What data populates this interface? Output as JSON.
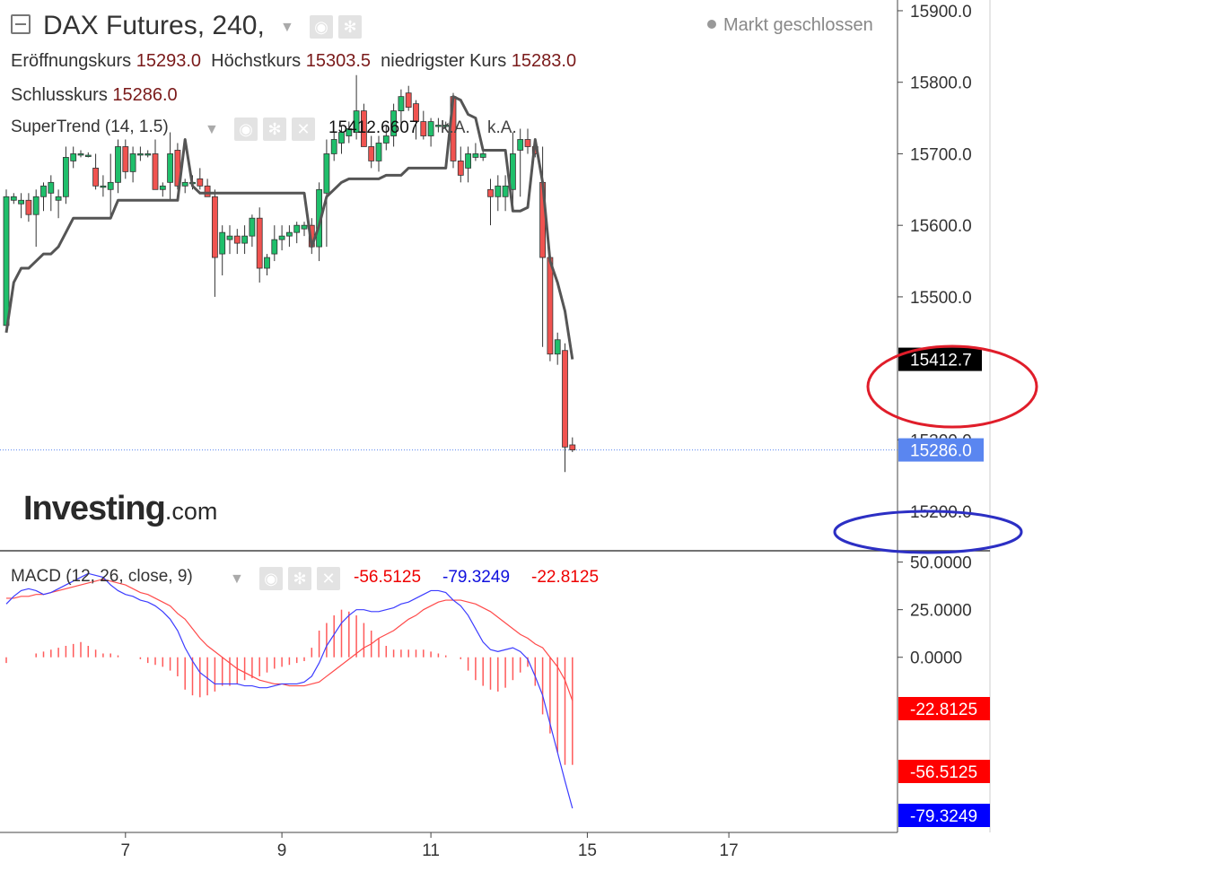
{
  "header": {
    "collapse_icon": "minus-square-icon",
    "title": "DAX Futures, 240,",
    "open_label": "Eröffnungskurs",
    "open_value": "15293.0",
    "high_label": "Höchstkurs",
    "high_value": "15303.5",
    "low_label": "niedrigster Kurs",
    "low_value": "15283.0",
    "close_label": "Schlusskurs",
    "close_value": "15286.0",
    "market_status": "Markt geschlossen"
  },
  "supertrend": {
    "label": "SuperTrend (14, 1.5)",
    "value": "15412.6607",
    "na1": "k.A.",
    "na2": "k.A."
  },
  "macd_legend": {
    "label": "MACD (12, 26, close, 9)",
    "hist_value": "-56.5125",
    "macd_value": "-79.3249",
    "signal_value": "-22.8125"
  },
  "logo": {
    "main": "Investing",
    "suffix": ".com"
  },
  "colors": {
    "up": "#1fbf6b",
    "down": "#f05350",
    "supertrend": "#555555",
    "macd_line": "#3c3cff",
    "signal_line": "#ff4a4a",
    "histogram": "#ff5a5a",
    "price_tag": "#5a86f0",
    "highlight_red": "#e01d2a",
    "highlight_blue": "#2c2fc4"
  },
  "chart_data": [
    {
      "type": "candlestick",
      "title": "DAX Futures, 240,",
      "ylim": [
        15145,
        15915
      ],
      "yticks": [
        15900,
        15800,
        15700,
        15600,
        15500,
        15300,
        15200
      ],
      "ytick_labels": [
        "15900.0",
        "15800.0",
        "15700.0",
        "15600.0",
        "15500.0",
        "15300.0",
        "15200.0"
      ],
      "x_ticks": [
        {
          "label": "7",
          "bar": 16
        },
        {
          "label": "9",
          "bar": 37
        },
        {
          "label": "11",
          "bar": 57
        },
        {
          "label": "15",
          "bar": 78
        },
        {
          "label": "17",
          "bar": 97
        }
      ],
      "candles": [
        {
          "o": 15460,
          "h": 15650,
          "l": 15455,
          "c": 15640
        },
        {
          "o": 15635,
          "h": 15645,
          "l": 15630,
          "c": 15640
        },
        {
          "o": 15630,
          "h": 15645,
          "l": 15610,
          "c": 15635
        },
        {
          "o": 15635,
          "h": 15645,
          "l": 15605,
          "c": 15615
        },
        {
          "o": 15615,
          "h": 15650,
          "l": 15570,
          "c": 15640
        },
        {
          "o": 15640,
          "h": 15660,
          "l": 15620,
          "c": 15655
        },
        {
          "o": 15645,
          "h": 15670,
          "l": 15620,
          "c": 15660
        },
        {
          "o": 15635,
          "h": 15650,
          "l": 15610,
          "c": 15640
        },
        {
          "o": 15640,
          "h": 15710,
          "l": 15630,
          "c": 15695
        },
        {
          "o": 15690,
          "h": 15710,
          "l": 15680,
          "c": 15700
        },
        {
          "o": 15700,
          "h": 15705,
          "l": 15695,
          "c": 15700
        },
        {
          "o": 15698,
          "h": 15702,
          "l": 15695,
          "c": 15698
        },
        {
          "o": 15680,
          "h": 15700,
          "l": 15650,
          "c": 15655
        },
        {
          "o": 15655,
          "h": 15670,
          "l": 15640,
          "c": 15655
        },
        {
          "o": 15650,
          "h": 15700,
          "l": 15610,
          "c": 15660
        },
        {
          "o": 15660,
          "h": 15720,
          "l": 15645,
          "c": 15710
        },
        {
          "o": 15710,
          "h": 15720,
          "l": 15665,
          "c": 15675
        },
        {
          "o": 15675,
          "h": 15710,
          "l": 15660,
          "c": 15700
        },
        {
          "o": 15700,
          "h": 15710,
          "l": 15690,
          "c": 15700
        },
        {
          "o": 15700,
          "h": 15705,
          "l": 15695,
          "c": 15700
        },
        {
          "o": 15700,
          "h": 15720,
          "l": 15650,
          "c": 15650
        },
        {
          "o": 15650,
          "h": 15660,
          "l": 15640,
          "c": 15655
        },
        {
          "o": 15660,
          "h": 15730,
          "l": 15635,
          "c": 15700
        },
        {
          "o": 15705,
          "h": 15715,
          "l": 15650,
          "c": 15655
        },
        {
          "o": 15655,
          "h": 15665,
          "l": 15645,
          "c": 15660
        },
        {
          "o": 15660,
          "h": 15670,
          "l": 15650,
          "c": 15660
        },
        {
          "o": 15665,
          "h": 15680,
          "l": 15650,
          "c": 15655
        },
        {
          "o": 15655,
          "h": 15665,
          "l": 15640,
          "c": 15640
        },
        {
          "o": 15640,
          "h": 15650,
          "l": 15500,
          "c": 15555
        },
        {
          "o": 15560,
          "h": 15600,
          "l": 15530,
          "c": 15590
        },
        {
          "o": 15580,
          "h": 15600,
          "l": 15560,
          "c": 15585
        },
        {
          "o": 15585,
          "h": 15595,
          "l": 15560,
          "c": 15575
        },
        {
          "o": 15575,
          "h": 15600,
          "l": 15560,
          "c": 15585
        },
        {
          "o": 15585,
          "h": 15615,
          "l": 15570,
          "c": 15610
        },
        {
          "o": 15610,
          "h": 15625,
          "l": 15520,
          "c": 15540
        },
        {
          "o": 15540,
          "h": 15560,
          "l": 15530,
          "c": 15555
        },
        {
          "o": 15560,
          "h": 15600,
          "l": 15550,
          "c": 15580
        },
        {
          "o": 15580,
          "h": 15600,
          "l": 15565,
          "c": 15585
        },
        {
          "o": 15585,
          "h": 15600,
          "l": 15570,
          "c": 15590
        },
        {
          "o": 15590,
          "h": 15605,
          "l": 15575,
          "c": 15600
        },
        {
          "o": 15595,
          "h": 15605,
          "l": 15585,
          "c": 15600
        },
        {
          "o": 15600,
          "h": 15610,
          "l": 15560,
          "c": 15570
        },
        {
          "o": 15570,
          "h": 15660,
          "l": 15550,
          "c": 15650
        },
        {
          "o": 15645,
          "h": 15720,
          "l": 15570,
          "c": 15700
        },
        {
          "o": 15700,
          "h": 15730,
          "l": 15690,
          "c": 15720
        },
        {
          "o": 15715,
          "h": 15740,
          "l": 15700,
          "c": 15730
        },
        {
          "o": 15725,
          "h": 15745,
          "l": 15715,
          "c": 15735
        },
        {
          "o": 15730,
          "h": 15810,
          "l": 15720,
          "c": 15760
        },
        {
          "o": 15760,
          "h": 15770,
          "l": 15710,
          "c": 15710
        },
        {
          "o": 15710,
          "h": 15725,
          "l": 15680,
          "c": 15690
        },
        {
          "o": 15690,
          "h": 15725,
          "l": 15675,
          "c": 15715
        },
        {
          "o": 15715,
          "h": 15740,
          "l": 15705,
          "c": 15725
        },
        {
          "o": 15725,
          "h": 15770,
          "l": 15710,
          "c": 15760
        },
        {
          "o": 15760,
          "h": 15790,
          "l": 15740,
          "c": 15780
        },
        {
          "o": 15785,
          "h": 15795,
          "l": 15760,
          "c": 15765
        },
        {
          "o": 15770,
          "h": 15775,
          "l": 15720,
          "c": 15745
        },
        {
          "o": 15745,
          "h": 15760,
          "l": 15720,
          "c": 15725
        },
        {
          "o": 15725,
          "h": 15750,
          "l": 15710,
          "c": 15745
        },
        {
          "o": 15740,
          "h": 15750,
          "l": 15730,
          "c": 15740
        },
        {
          "o": 15740,
          "h": 15745,
          "l": 15735,
          "c": 15740
        },
        {
          "o": 15780,
          "h": 15785,
          "l": 15680,
          "c": 15690
        },
        {
          "o": 15690,
          "h": 15710,
          "l": 15660,
          "c": 15670
        },
        {
          "o": 15680,
          "h": 15710,
          "l": 15660,
          "c": 15700
        },
        {
          "o": 15695,
          "h": 15715,
          "l": 15690,
          "c": 15700
        },
        {
          "o": 15695,
          "h": 15705,
          "l": 15690,
          "c": 15700
        },
        {
          "o": 15650,
          "h": 15665,
          "l": 15600,
          "c": 15640
        },
        {
          "o": 15640,
          "h": 15670,
          "l": 15620,
          "c": 15655
        },
        {
          "o": 15640,
          "h": 15670,
          "l": 15620,
          "c": 15655
        },
        {
          "o": 15650,
          "h": 15730,
          "l": 15630,
          "c": 15700
        },
        {
          "o": 15705,
          "h": 15735,
          "l": 15640,
          "c": 15720
        },
        {
          "o": 15720,
          "h": 15735,
          "l": 15700,
          "c": 15710
        },
        {
          "o": 15710,
          "h": 15720,
          "l": 15695,
          "c": 15700
        },
        {
          "o": 15660,
          "h": 15710,
          "l": 15430,
          "c": 15555
        },
        {
          "o": 15555,
          "h": 15560,
          "l": 15410,
          "c": 15420
        },
        {
          "o": 15420,
          "h": 15450,
          "l": 15405,
          "c": 15440
        },
        {
          "o": 15425,
          "h": 15435,
          "l": 15255,
          "c": 15290
        },
        {
          "o": 15293,
          "h": 15303.5,
          "l": 15283,
          "c": 15286
        }
      ],
      "supertrend": [
        15450,
        15520,
        15540,
        15540,
        15550,
        15560,
        15560,
        15570,
        15590,
        15610,
        15610,
        15610,
        15610,
        15610,
        15610,
        15635,
        15635,
        15635,
        15635,
        15635,
        15635,
        15635,
        15635,
        15635,
        15720,
        15655,
        15645,
        15645,
        15645,
        15645,
        15645,
        15645,
        15645,
        15645,
        15645,
        15645,
        15645,
        15645,
        15645,
        15645,
        15645,
        15570,
        15600,
        15640,
        15650,
        15660,
        15665,
        15665,
        15665,
        15665,
        15665,
        15670,
        15670,
        15670,
        15680,
        15680,
        15680,
        15680,
        15680,
        15680,
        15780,
        15775,
        15755,
        15750,
        15705,
        15705,
        15705,
        15705,
        15620,
        15620,
        15625,
        15720,
        15660,
        15550,
        15520,
        15480,
        15412.6607
      ],
      "last_price": 15286.0,
      "last_price_label": "15286.0",
      "supertrend_last_label": "15412.7"
    },
    {
      "type": "line",
      "title": "MACD (12, 26, close, 9)",
      "ylim": [
        -92,
        55
      ],
      "yticks": [
        50,
        25,
        0
      ],
      "ytick_labels": [
        "50.0000",
        "25.0000",
        "0.0000"
      ],
      "series": [
        {
          "values": [
            28,
            32,
            35,
            36,
            35,
            33,
            34,
            36,
            38,
            40,
            42,
            44,
            43,
            42,
            38,
            35,
            33,
            32,
            30,
            29,
            27,
            24,
            20,
            14,
            5,
            -2,
            -8,
            -11,
            -14,
            -14,
            -14,
            -14,
            -15,
            -15,
            -16,
            -16,
            -15,
            -14,
            -14,
            -14,
            -13,
            -10,
            -3,
            6,
            12,
            18,
            22,
            25,
            25,
            24,
            24,
            25,
            26,
            28,
            29,
            31,
            33,
            35,
            35,
            34,
            30,
            27,
            22,
            15,
            8,
            4,
            3,
            4,
            5,
            3,
            -1,
            -10,
            -20,
            -35,
            -50,
            -65,
            -79.3249
          ]
        },
        {
          "values": [
            31,
            31,
            32,
            32,
            33,
            33,
            34,
            35,
            36,
            37,
            38,
            39,
            40,
            41,
            40,
            39,
            38,
            36,
            34,
            33,
            31,
            29,
            27,
            23,
            20,
            15,
            10,
            6,
            3,
            0,
            -3,
            -6,
            -8,
            -10,
            -12,
            -13,
            -14,
            -14,
            -15,
            -15,
            -15,
            -14,
            -13,
            -10,
            -7,
            -4,
            -1,
            2,
            5,
            7,
            10,
            12,
            14,
            17,
            20,
            22,
            25,
            27,
            29,
            30,
            30,
            30,
            29,
            28,
            26,
            24,
            21,
            18,
            15,
            12,
            10,
            7,
            5,
            0,
            -5,
            -12,
            -22.8125
          ]
        }
      ],
      "histogram": [
        -3,
        0,
        0,
        0,
        2,
        3,
        4,
        5,
        6,
        7,
        8,
        6,
        4,
        2,
        2,
        1,
        0,
        0,
        -1,
        -3,
        -4,
        -5,
        -7,
        -10,
        -17,
        -20,
        -21,
        -20,
        -18,
        -15,
        -15,
        -14,
        -12,
        -11,
        -10,
        -8,
        -6,
        -5,
        -4,
        -3,
        -2,
        5,
        14,
        18,
        22,
        25,
        24,
        22,
        18,
        14,
        10,
        6,
        4,
        4,
        4,
        4,
        4,
        3,
        2,
        1,
        0,
        -1,
        -7,
        -12,
        -15,
        -17,
        -18,
        -16,
        -12,
        -8,
        -5,
        -15,
        -30,
        -40,
        -50,
        -56.5125,
        -56.5125
      ],
      "tag_labels": {
        "signal": "-22.8125",
        "hist": "-56.5125",
        "macd": "-79.3249"
      }
    }
  ]
}
